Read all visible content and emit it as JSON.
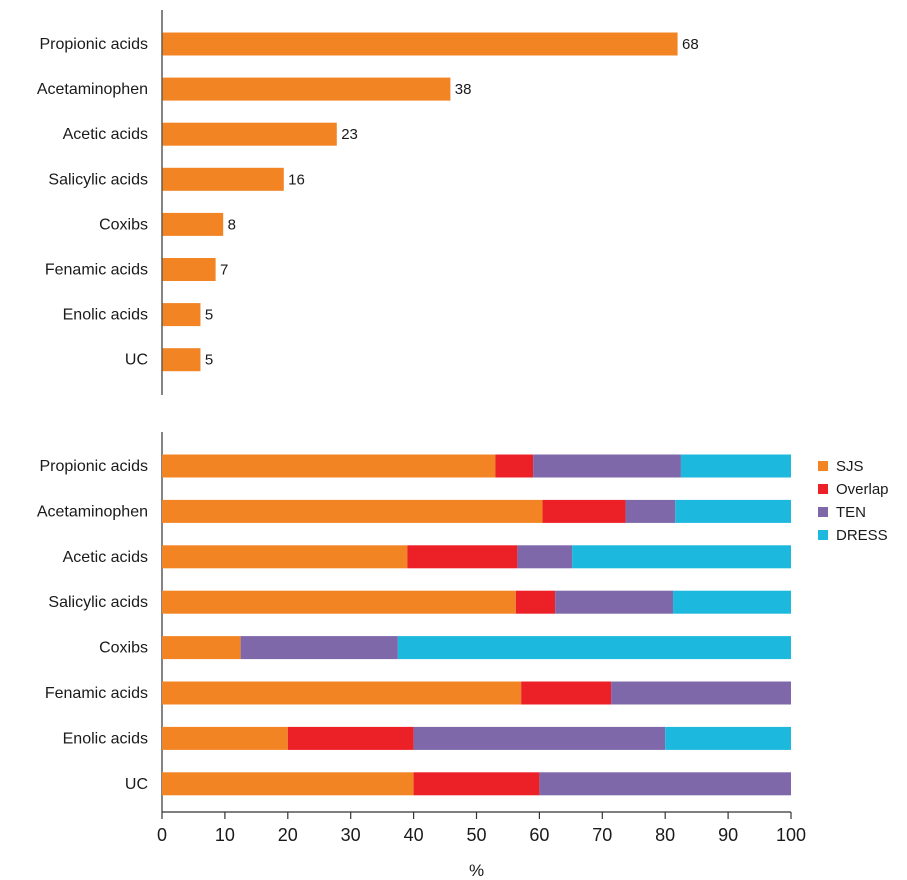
{
  "chart_data": [
    {
      "type": "bar",
      "orientation": "horizontal",
      "categories": [
        "Propionic acids",
        "Acetaminophen",
        "Acetic acids",
        "Salicylic acids",
        "Coxibs",
        "Fenamic acids",
        "Enolic acids",
        "UC"
      ],
      "values": [
        68,
        38,
        23,
        16,
        8,
        7,
        5,
        5
      ],
      "data_labels": [
        "68",
        "38",
        "23",
        "16",
        "8",
        "7",
        "5",
        "5"
      ],
      "title": "",
      "xlabel": "",
      "ylabel": "",
      "xlim": [
        0,
        83
      ],
      "grid": false,
      "colors": {
        "bar": "#f28424"
      }
    },
    {
      "type": "bar",
      "orientation": "horizontal",
      "stacked": true,
      "categories": [
        "Propionic acids",
        "Acetaminophen",
        "Acetic acids",
        "Salicylic acids",
        "Coxibs",
        "Fenamic acids",
        "Enolic acids",
        "UC"
      ],
      "series": [
        {
          "name": "SJS",
          "color": "#f28424",
          "values": [
            53,
            60.5,
            39,
            56.25,
            12.5,
            57.1,
            20,
            40
          ]
        },
        {
          "name": "Overlap",
          "color": "#ec2027",
          "values": [
            6,
            13.2,
            17.5,
            6.25,
            0,
            14.3,
            20,
            20
          ]
        },
        {
          "name": "TEN",
          "color": "#7f68aa",
          "values": [
            23.5,
            7.9,
            8.7,
            18.75,
            25,
            28.6,
            40,
            40
          ]
        },
        {
          "name": "DRESS",
          "color": "#1cb8de",
          "values": [
            17.5,
            18.4,
            34.8,
            18.75,
            62.5,
            0,
            20,
            0
          ]
        }
      ],
      "xlabel": "%",
      "xlim": [
        0,
        100
      ],
      "xticks": [
        "0",
        "10",
        "20",
        "30",
        "40",
        "50",
        "60",
        "70",
        "80",
        "90",
        "100"
      ],
      "legend": "right",
      "grid": false
    }
  ]
}
